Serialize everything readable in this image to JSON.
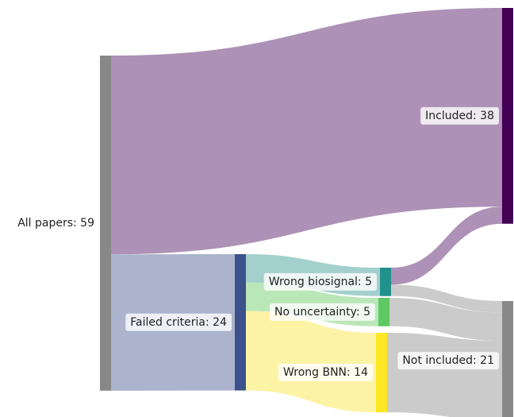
{
  "chart_data": {
    "type": "sankey",
    "nodes": [
      {
        "label": "All papers: 59",
        "value": 59,
        "color": "#888888"
      },
      {
        "label": "Failed criteria: 24",
        "value": 24,
        "color": "#3b528b"
      },
      {
        "label": "Wrong biosignal: 5",
        "value": 5,
        "color": "#21918c"
      },
      {
        "label": "No uncertainty: 5",
        "value": 5,
        "color": "#5ec962"
      },
      {
        "label": "Wrong BNN: 14",
        "value": 14,
        "color": "#fde725"
      },
      {
        "label": "Included: 38",
        "value": 38,
        "color": "#440154"
      },
      {
        "label": "Not included: 21",
        "value": 21,
        "color": "#888888"
      }
    ],
    "links": [
      {
        "source": 0,
        "target": 5,
        "value": 35,
        "color": "#a98bb2"
      },
      {
        "source": 0,
        "target": 1,
        "value": 24,
        "color": "#a6b0c9"
      },
      {
        "source": 1,
        "target": 2,
        "value": 5,
        "color": "#9ecdc9"
      },
      {
        "source": 1,
        "target": 3,
        "value": 5,
        "color": "#b6e6b4"
      },
      {
        "source": 1,
        "target": 4,
        "value": 14,
        "color": "#fdf2a0"
      },
      {
        "source": 2,
        "target": 5,
        "value": 3,
        "color": "#a98bb2"
      },
      {
        "source": 2,
        "target": 6,
        "value": 2,
        "color": "#c8c8c8"
      },
      {
        "source": 3,
        "target": 6,
        "value": 5,
        "color": "#c8c8c8"
      },
      {
        "source": 4,
        "target": 6,
        "value": 14,
        "color": "#c8c8c8"
      }
    ]
  }
}
